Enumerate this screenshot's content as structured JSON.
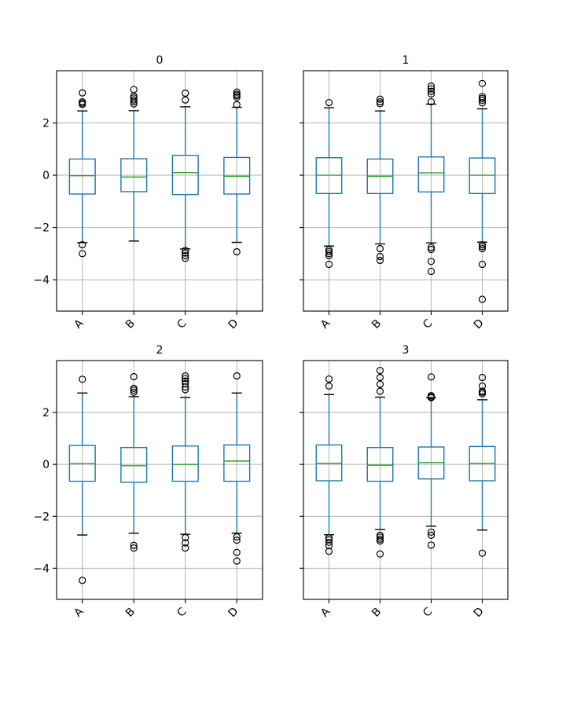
{
  "figure": {
    "background": "#ffffff",
    "spine_color": "#000000",
    "grid_color": "#b2b2b2",
    "box_color": "#1f77b4",
    "whisker_color": "#1f77b4",
    "cap_color": "#000000",
    "median_color": "#2ca02c",
    "flier_color": "#000000",
    "tick_label_color": "#000000"
  },
  "chart_data": {
    "type": "boxplot-grid",
    "grid": true,
    "legend": "none",
    "categories": [
      "A",
      "B",
      "C",
      "D"
    ],
    "xlim": [
      0.5,
      4.5
    ],
    "ylim": [
      -5.2,
      4.0
    ],
    "yticks": [
      2,
      0,
      -2,
      -4
    ],
    "ytick_labels": [
      "2",
      "0",
      "−2",
      "−4"
    ],
    "xtick_rotation_deg": 45,
    "subplots": [
      {
        "title": "0",
        "boxes": [
          {
            "label": "A",
            "whislo": -2.58,
            "q1": -0.72,
            "med": -0.02,
            "q3": 0.62,
            "whishi": 2.46,
            "fliers": [
              2.71,
              2.76,
              2.81,
              3.15,
              -2.66,
              -3.0
            ]
          },
          {
            "label": "B",
            "whislo": -2.52,
            "q1": -0.63,
            "med": -0.07,
            "q3": 0.63,
            "whishi": 2.47,
            "fliers": [
              2.73,
              2.81,
              2.88,
              2.96,
              3.03,
              3.28
            ]
          },
          {
            "label": "C",
            "whislo": -2.82,
            "q1": -0.74,
            "med": 0.1,
            "q3": 0.76,
            "whishi": 2.62,
            "fliers": [
              2.88,
              3.14,
              -2.88,
              -2.98,
              -3.08,
              -3.18
            ]
          },
          {
            "label": "D",
            "whislo": -2.57,
            "q1": -0.72,
            "med": -0.04,
            "q3": 0.68,
            "whishi": 2.6,
            "fliers": [
              2.7,
              2.98,
              3.05,
              3.1,
              3.18,
              -2.93
            ]
          }
        ]
      },
      {
        "title": "1",
        "boxes": [
          {
            "label": "A",
            "whislo": -2.71,
            "q1": -0.7,
            "med": 0.0,
            "q3": 0.67,
            "whishi": 2.58,
            "fliers": [
              2.78,
              -2.85,
              -2.92,
              -3.0,
              -3.08,
              -3.41
            ]
          },
          {
            "label": "B",
            "whislo": -2.63,
            "q1": -0.7,
            "med": -0.04,
            "q3": 0.62,
            "whishi": 2.46,
            "fliers": [
              2.74,
              2.81,
              2.91,
              -2.81,
              -3.11,
              -3.26
            ]
          },
          {
            "label": "C",
            "whislo": -2.59,
            "q1": -0.64,
            "med": 0.09,
            "q3": 0.7,
            "whishi": 2.72,
            "fliers": [
              2.81,
              3.11,
              3.21,
              3.31,
              3.41,
              -2.76,
              -2.84,
              -3.3,
              -3.68
            ]
          },
          {
            "label": "D",
            "whislo": -2.56,
            "q1": -0.7,
            "med": 0.0,
            "q3": 0.66,
            "whishi": 2.54,
            "fliers": [
              2.77,
              2.87,
              2.94,
              3.01,
              3.51,
              -2.66,
              -2.73,
              -2.81,
              -3.41,
              -4.75
            ]
          }
        ]
      },
      {
        "title": "2",
        "boxes": [
          {
            "label": "A",
            "whislo": -2.72,
            "q1": -0.65,
            "med": 0.03,
            "q3": 0.73,
            "whishi": 2.75,
            "fliers": [
              3.28,
              -4.47
            ]
          },
          {
            "label": "B",
            "whislo": -2.65,
            "q1": -0.69,
            "med": -0.05,
            "q3": 0.65,
            "whishi": 2.61,
            "fliers": [
              2.78,
              2.86,
              2.93,
              3.38,
              -3.12,
              -3.22
            ]
          },
          {
            "label": "C",
            "whislo": -2.69,
            "q1": -0.65,
            "med": 0.0,
            "q3": 0.71,
            "whishi": 2.58,
            "fliers": [
              2.88,
              2.98,
              3.11,
              3.21,
              3.31,
              3.41,
              -2.82,
              -3.02,
              -3.22
            ]
          },
          {
            "label": "D",
            "whislo": -2.65,
            "q1": -0.65,
            "med": 0.13,
            "q3": 0.75,
            "whishi": 2.75,
            "fliers": [
              3.41,
              -2.79,
              -2.92,
              -3.39,
              -3.72
            ]
          }
        ]
      },
      {
        "title": "3",
        "boxes": [
          {
            "label": "A",
            "whislo": -2.71,
            "q1": -0.63,
            "med": 0.04,
            "q3": 0.75,
            "whishi": 2.69,
            "fliers": [
              3.02,
              3.29,
              -2.83,
              -2.9,
              -3.0,
              -3.13,
              -3.35
            ]
          },
          {
            "label": "B",
            "whislo": -2.51,
            "q1": -0.65,
            "med": -0.03,
            "q3": 0.65,
            "whishi": 2.59,
            "fliers": [
              2.82,
              3.09,
              3.35,
              3.62,
              -2.73,
              -2.8,
              -2.88,
              -2.95,
              -3.45
            ]
          },
          {
            "label": "C",
            "whislo": -2.38,
            "q1": -0.56,
            "med": 0.07,
            "q3": 0.67,
            "whishi": 2.57,
            "fliers": [
              2.57,
              2.6,
              2.65,
              3.37,
              -2.61,
              -2.73,
              -3.11
            ]
          },
          {
            "label": "D",
            "whislo": -2.53,
            "q1": -0.63,
            "med": 0.04,
            "q3": 0.69,
            "whishi": 2.49,
            "fliers": [
              2.72,
              2.78,
              2.82,
              3.02,
              3.35,
              -3.42
            ]
          }
        ]
      }
    ]
  }
}
